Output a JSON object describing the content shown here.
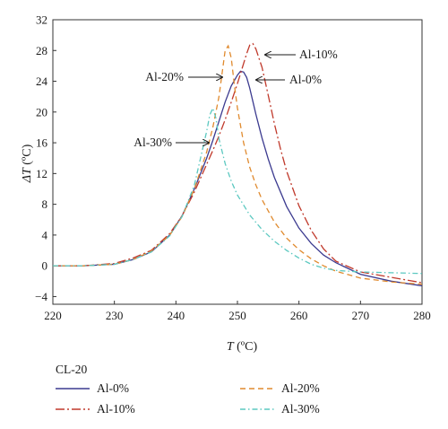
{
  "chart_data": {
    "type": "line",
    "xlabel_parts": [
      "T",
      " (ºC)"
    ],
    "ylabel_parts": [
      "ΔT",
      " (ºC)"
    ],
    "xlim": [
      220,
      280
    ],
    "ylim": [
      -5,
      32
    ],
    "xticks": [
      "220",
      "230",
      "240",
      "250",
      "260",
      "270",
      "280"
    ],
    "yticks": [
      "−4",
      "0",
      "4",
      "8",
      "12",
      "16",
      "20",
      "24",
      "28",
      "32"
    ],
    "grid": false,
    "legend_title": "CL-20",
    "legend_position": "below",
    "series": [
      {
        "name": "Al-0%",
        "color": "#3b3a8f",
        "dash": "solid",
        "x": [
          220,
          225,
          230,
          233,
          236,
          239,
          241,
          243,
          245,
          246,
          247,
          248,
          249,
          250,
          250.5,
          251,
          251.5,
          252,
          252.5,
          253,
          254,
          255,
          256,
          258,
          260,
          262,
          264,
          266,
          270,
          275,
          280
        ],
        "y": [
          0,
          0,
          0.2,
          0.8,
          1.8,
          4.0,
          6.5,
          10,
          14,
          16.3,
          18.8,
          21.3,
          23.4,
          24.8,
          25.3,
          25.2,
          24.5,
          23.1,
          21.4,
          19.7,
          16.6,
          13.9,
          11.5,
          7.7,
          4.9,
          2.9,
          1.4,
          0.4,
          -1.1,
          -2.0,
          -2.6
        ],
        "label": "Al-0%"
      },
      {
        "name": "Al-10%",
        "color": "#c0392b",
        "dash": "10,3,2,3",
        "x": [
          220,
          225,
          230,
          233,
          236,
          239,
          241,
          243,
          245,
          246,
          247,
          248,
          249,
          250,
          251,
          251.5,
          252,
          252.5,
          253,
          254,
          255,
          256,
          257,
          258,
          260,
          262,
          264,
          266,
          270,
          275,
          280
        ],
        "y": [
          0,
          0,
          0.3,
          1.0,
          2.0,
          4.2,
          6.5,
          9.6,
          13.2,
          15.0,
          16.9,
          19.0,
          21.3,
          23.7,
          26.3,
          27.6,
          28.7,
          28.9,
          28.2,
          25.8,
          22.2,
          18.5,
          15.2,
          12.3,
          7.8,
          4.6,
          2.2,
          0.6,
          -0.8,
          -1.5,
          -2.2
        ],
        "label": "Al-10%"
      },
      {
        "name": "Al-20%",
        "color": "#e08a2e",
        "dash": "6,4",
        "x": [
          220,
          225,
          230,
          233,
          236,
          239,
          241,
          243,
          245,
          246,
          247,
          247.5,
          248,
          248.5,
          249,
          249.5,
          250,
          251,
          252,
          253,
          254,
          256,
          258,
          260,
          262,
          264,
          266,
          270,
          275,
          280
        ],
        "y": [
          0,
          0,
          0.2,
          0.8,
          1.9,
          4.0,
          6.4,
          10,
          14.8,
          18,
          22,
          25,
          28,
          28.6,
          27,
          23.5,
          20.5,
          16,
          12.8,
          10.5,
          8.6,
          5.7,
          3.6,
          2.1,
          0.9,
          0.0,
          -0.7,
          -1.6,
          -2.1,
          -2.4
        ],
        "label": "Al-20%"
      },
      {
        "name": "Al-30%",
        "color": "#5bc8c0",
        "dash": "6,3,1.5,3",
        "x": [
          220,
          225,
          230,
          233,
          236,
          239,
          241,
          243,
          244,
          245,
          245.5,
          246,
          246.5,
          247,
          248,
          249,
          250,
          252,
          254,
          256,
          258,
          260,
          262,
          264,
          266,
          270,
          275,
          280
        ],
        "y": [
          0,
          0,
          0.2,
          0.8,
          1.8,
          3.9,
          6.4,
          10.5,
          14,
          17.5,
          19.6,
          20.5,
          19.2,
          16.5,
          13.3,
          11.0,
          9.2,
          6.6,
          4.7,
          3.2,
          2.0,
          1.0,
          0.2,
          -0.3,
          -0.6,
          -0.8,
          -0.9,
          -1.0
        ],
        "label": "Al-30%"
      }
    ],
    "annotations": [
      {
        "text": "Al-10%",
        "target": [
          253.2,
          28.4
        ]
      },
      {
        "text": "Al-20%",
        "target": [
          247.6,
          24.8
        ]
      },
      {
        "text": "Al-0%",
        "target": [
          252.3,
          24.4
        ]
      },
      {
        "text": "Al-30%",
        "target": [
          245.6,
          16.3
        ]
      }
    ]
  }
}
